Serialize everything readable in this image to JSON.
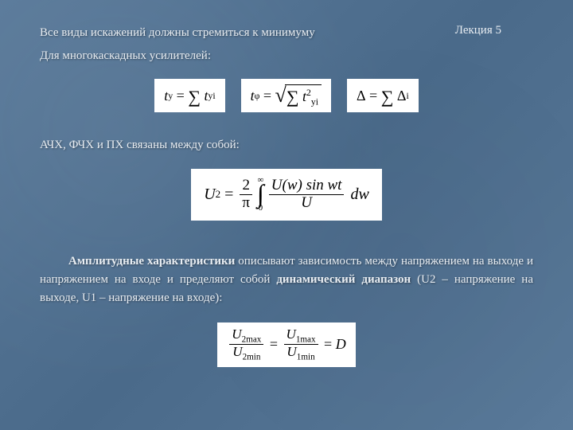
{
  "lecture": "Лекция 5",
  "p1": "Все виды искажений должны стремиться к минимуму",
  "p2": "Для многокаскадных усилителей:",
  "p3": "АЧХ, ФЧХ и ПХ связаны между собой:",
  "body": {
    "pre": "Амплитудные характеристики",
    "mid": " описывают зависимость между напряжением на выходе и напряжением на входе и пределяют собой ",
    "bold2": "динамический диапазон",
    "tail": " (U2 – напряжение на выходе, U1 – напряжение на входе):"
  },
  "f1": {
    "lhs": "t",
    "lhs_sub": "y",
    "rhs_sub": "yi"
  },
  "f2": {
    "lhs": "t",
    "lhs_sub": "φ",
    "inner_sub": "yi"
  },
  "f3": {
    "lhs": "Δ",
    "rhs_sub": "i"
  },
  "f4": {
    "U2": "U",
    "U2sub": "2",
    "two": "2",
    "pi": "π",
    "Uw": "U(w) sin wt",
    "U": "U",
    "dw": "dw"
  },
  "f5": {
    "u2max": "2max",
    "u2min": "2min",
    "u1max": "1max",
    "u1min": "1min",
    "D": "D"
  },
  "colors": {
    "bg": "#5a7a9a",
    "text": "#e8edf2",
    "formula_bg": "#ffffff",
    "formula_text": "#000000"
  },
  "fontsize": {
    "body": 15,
    "formula": 18
  }
}
